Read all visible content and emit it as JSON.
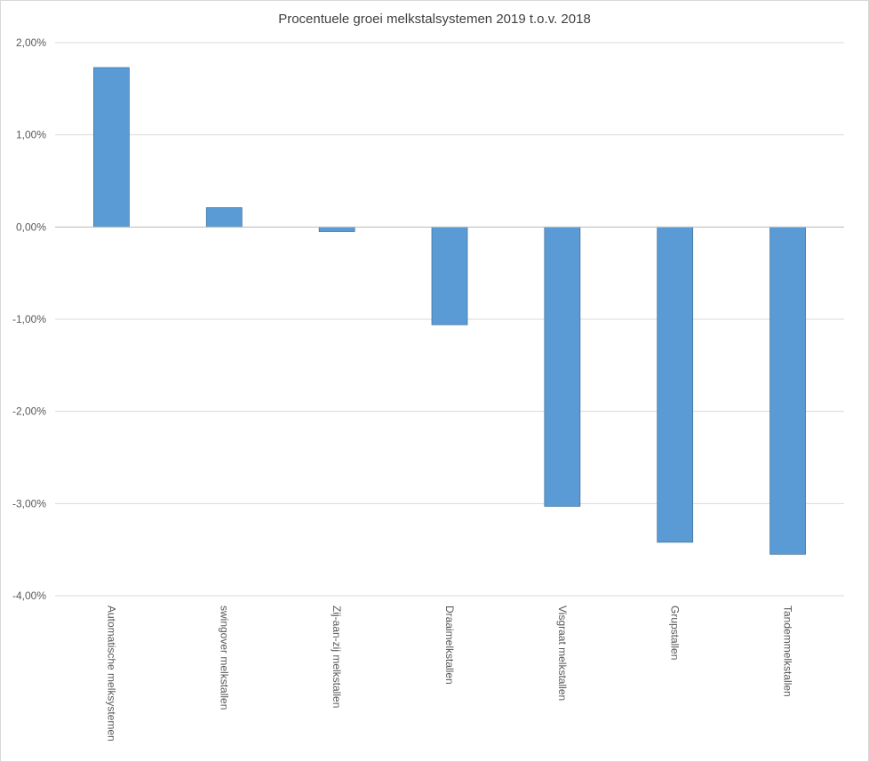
{
  "chart_data": {
    "type": "bar",
    "title": "Procentuele groei melkstalsystemen 2019 t.o.v. 2018",
    "xlabel": "",
    "ylabel": "",
    "categories": [
      "Automatische melksystemen",
      "swingover melkstallen",
      "Zij-aan-zij melkstallen",
      "Draaimelkstallen",
      "Visgraat melkstallen",
      "Grupstallen",
      "Tandemmelkstallen"
    ],
    "values": [
      1.73,
      0.21,
      -0.05,
      -1.06,
      -3.03,
      -3.42,
      -3.55
    ],
    "ylim": [
      -4,
      2
    ],
    "yticks": [
      "2,00%",
      "1,00%",
      "0,00%",
      "-1,00%",
      "-2,00%",
      "-3,00%",
      "-4,00%"
    ],
    "bar_color": "#5b9bd5",
    "grid": true,
    "legend": "none"
  }
}
